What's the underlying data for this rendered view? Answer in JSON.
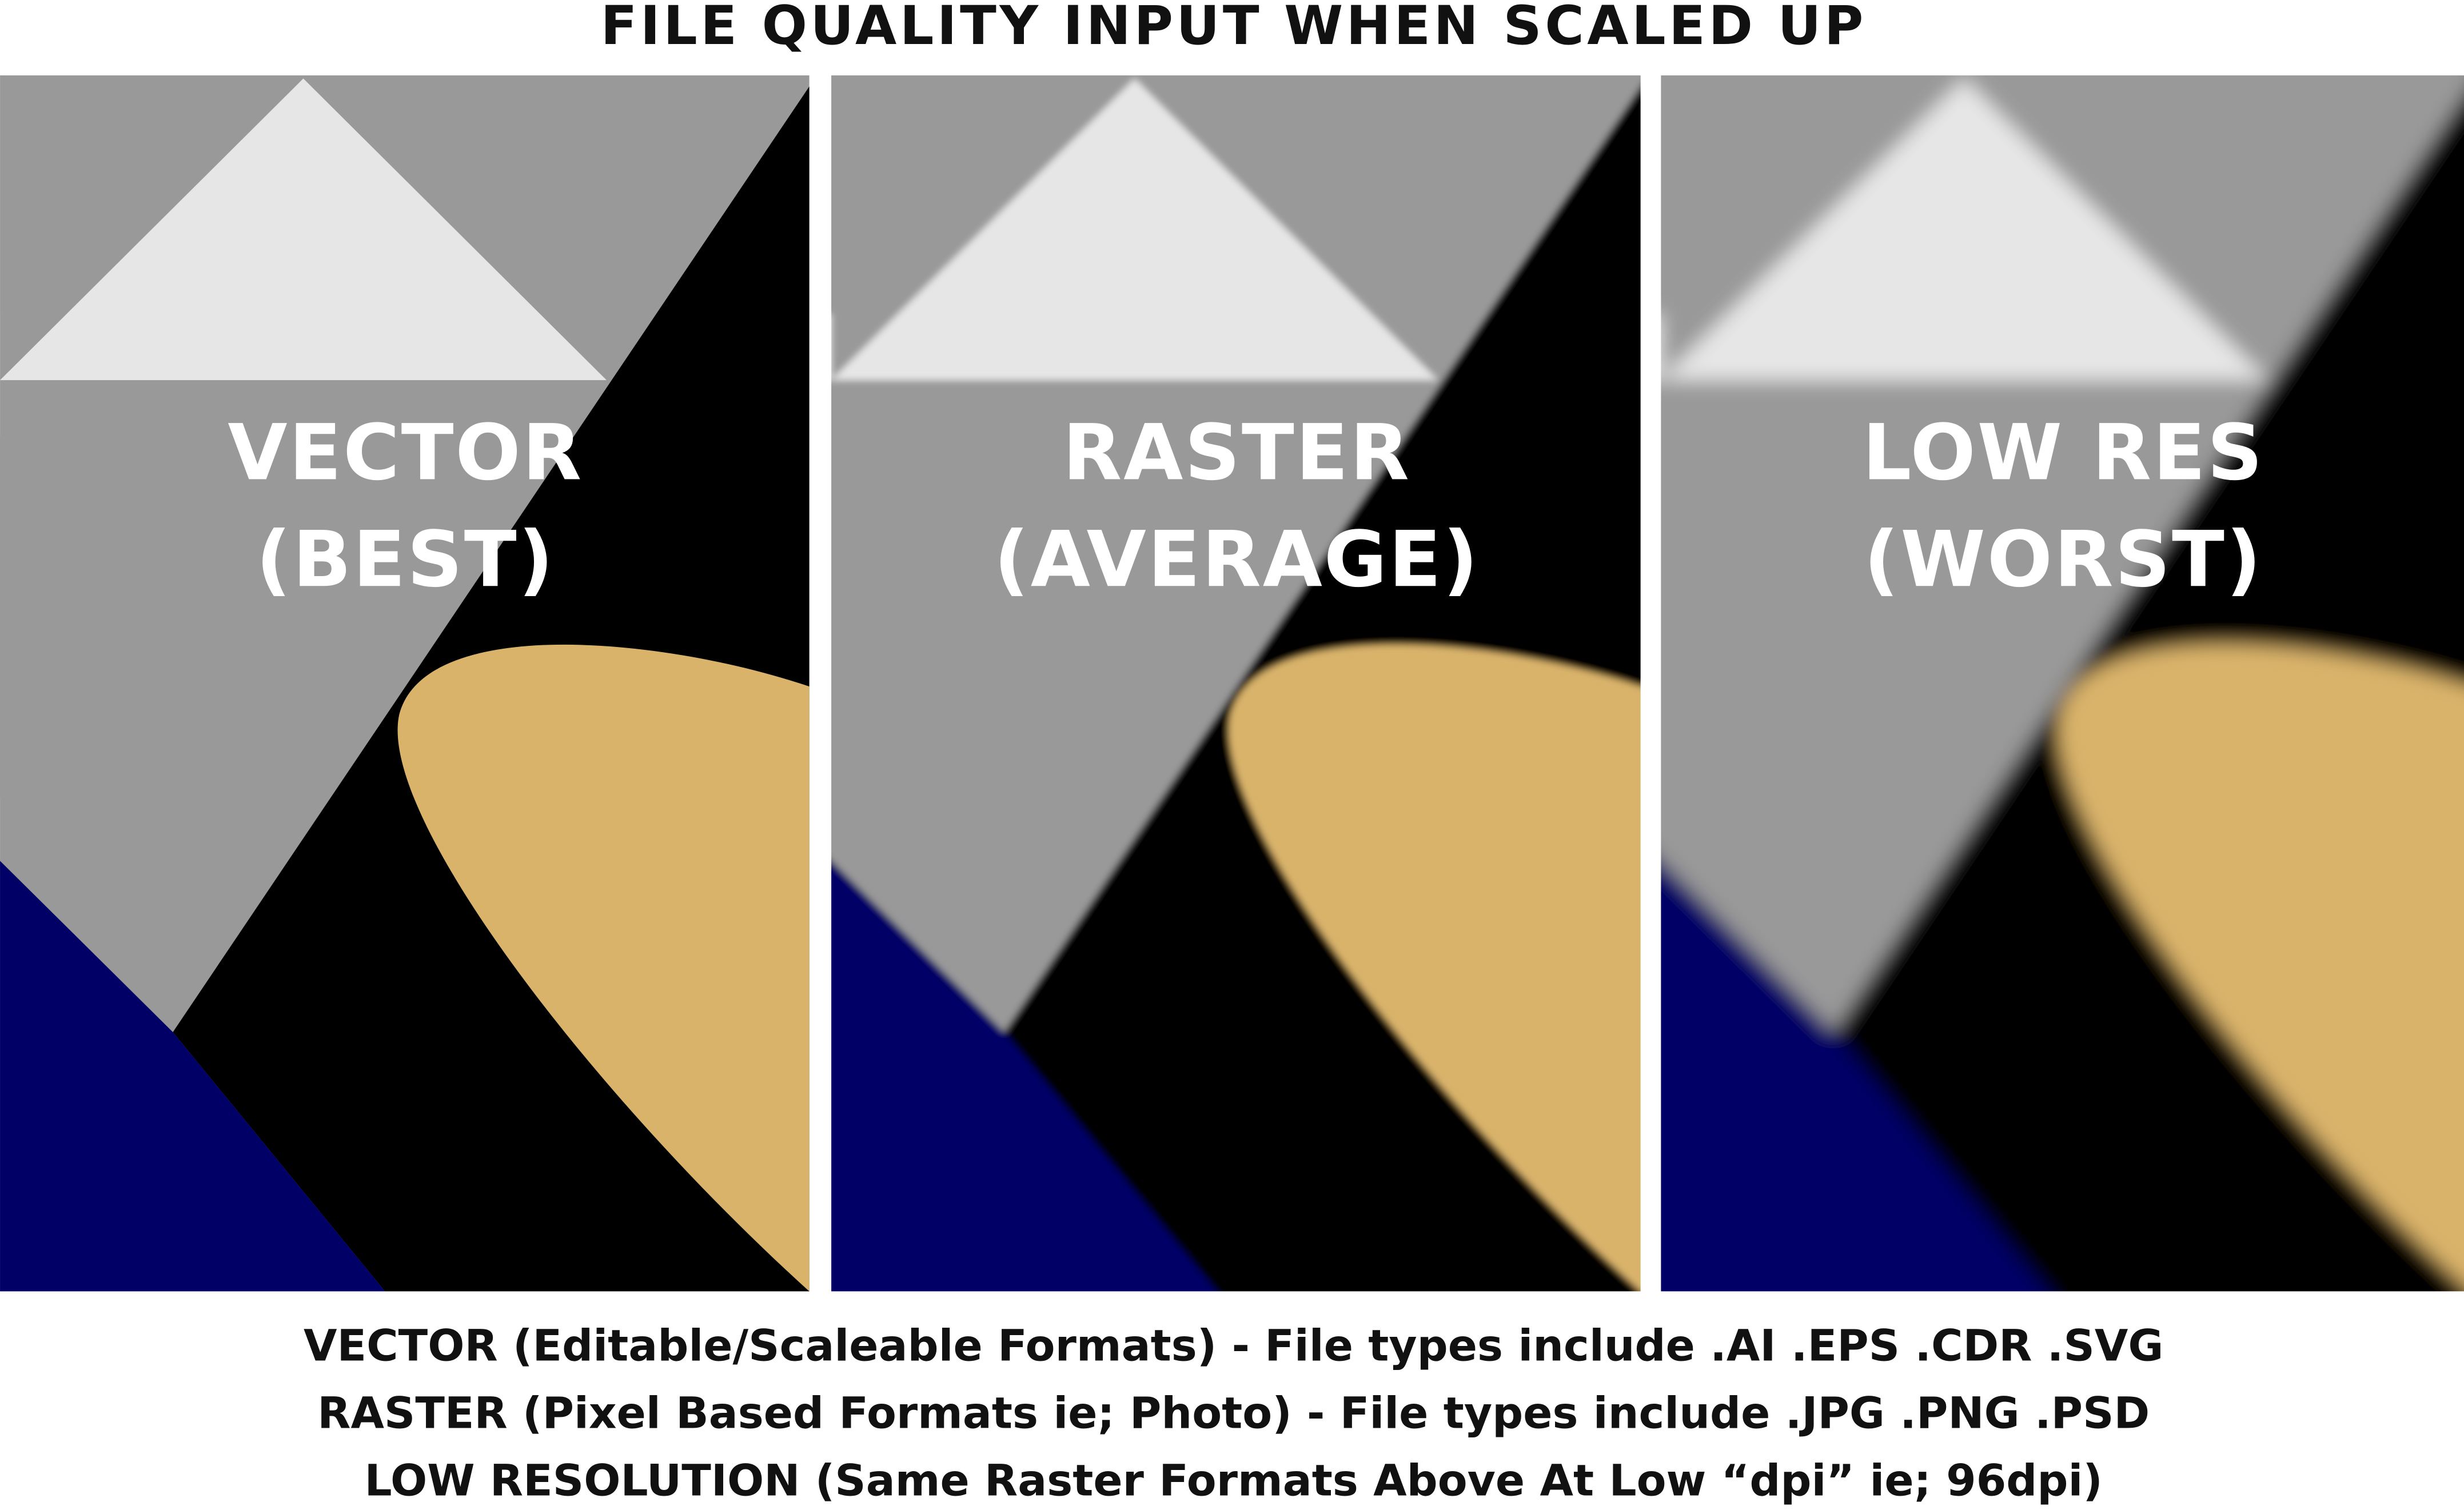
{
  "header": {
    "title": "FILE QUALITY INPUT WHEN SCALED UP"
  },
  "panels": [
    {
      "label_lines": [
        "VECTOR",
        "(BEST)"
      ]
    },
    {
      "label_lines": [
        "RASTER",
        "(AVERAGE)"
      ]
    },
    {
      "label_lines": [
        "LOW RES",
        "(WORST)"
      ]
    }
  ],
  "footer": {
    "lines": [
      "VECTOR (Editable/Scaleable Formats) - File types include .AI .EPS .CDR .SVG",
      "RASTER (Pixel Based Formats ie; Photo) - File types include .JPG .PNG .PSD",
      "LOW RESOLUTION (Same Raster Formats Above At Low “dpi” ie; 96dpi)"
    ]
  }
}
